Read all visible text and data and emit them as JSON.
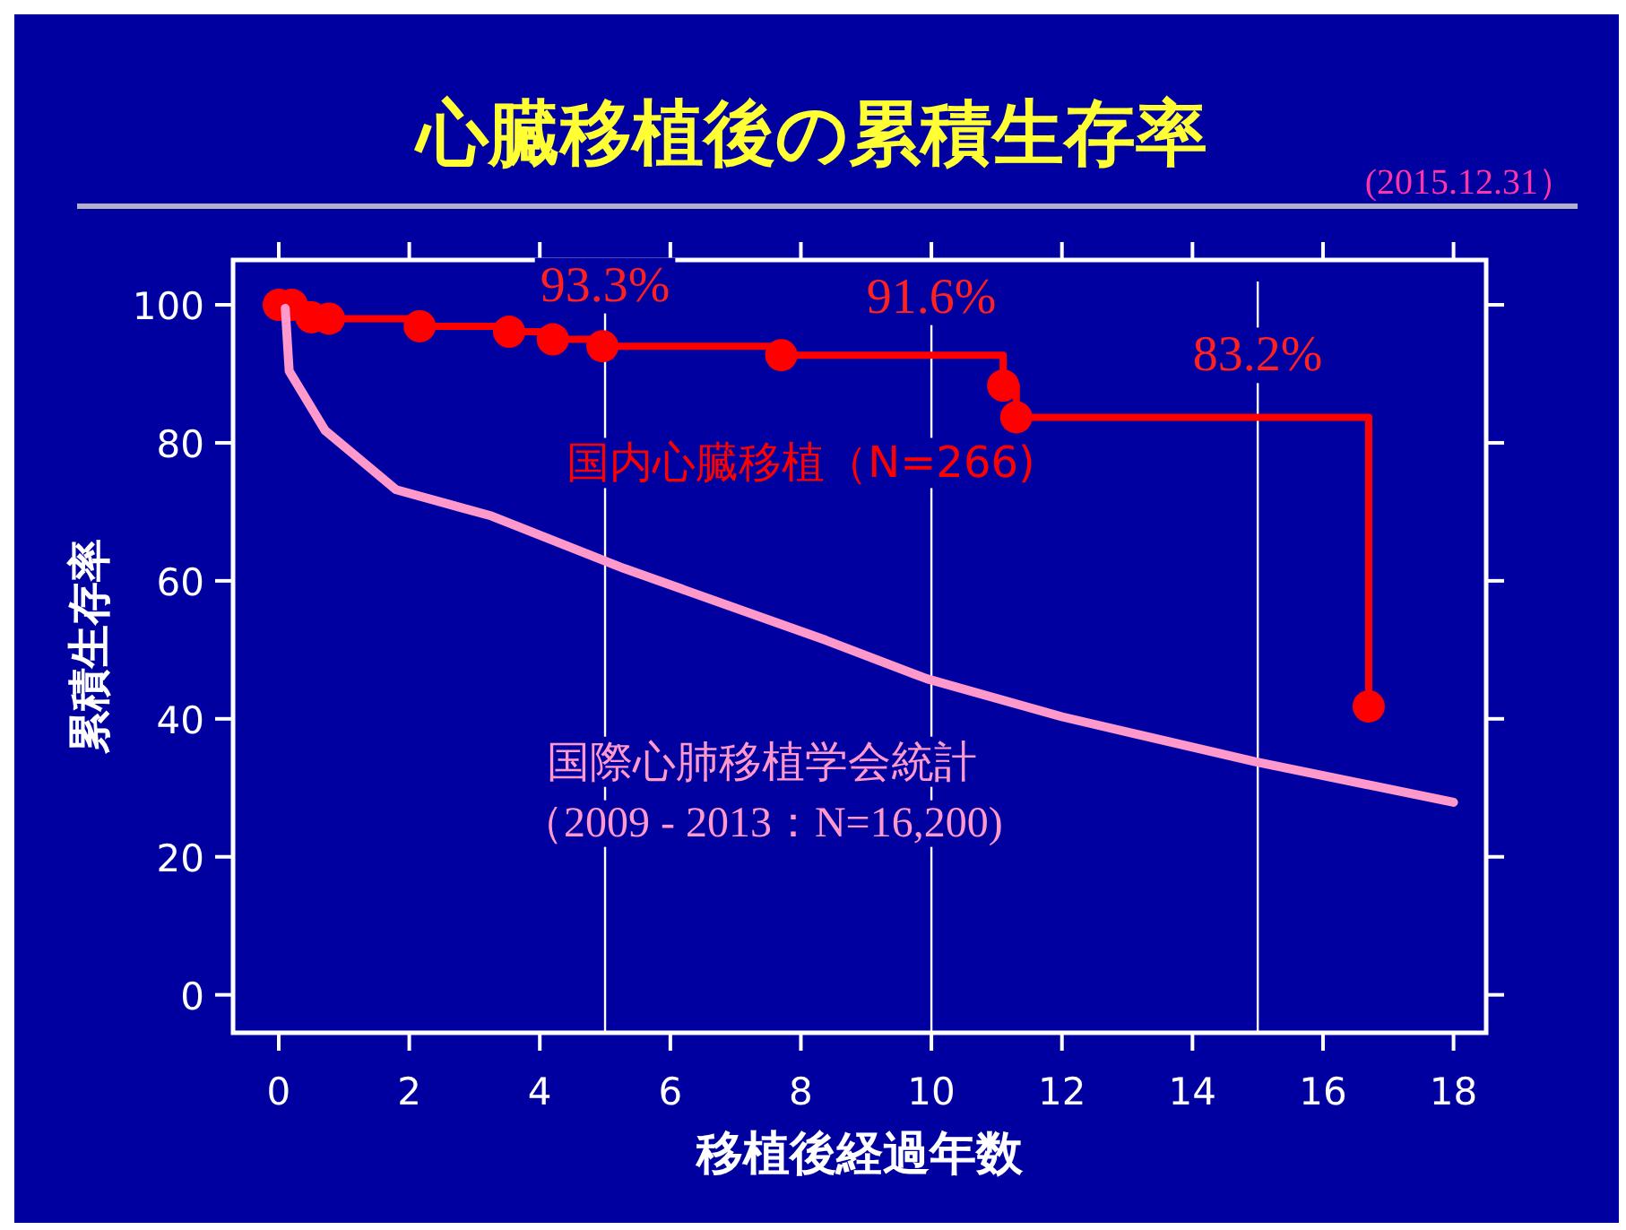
{
  "chart_data": {
    "type": "step",
    "title": "心臓移植後の累積生存率",
    "xlabel": "移植後経過年数",
    "ylabel": "累積生存率",
    "xlim": [
      -0.7,
      18.5
    ],
    "ylim": [
      -5.5,
      106.5
    ],
    "xticks": [
      0,
      2,
      4,
      6,
      8,
      10,
      12,
      14,
      16,
      18
    ],
    "yticks": [
      0,
      20,
      40,
      60,
      80,
      100
    ],
    "marker": "circle",
    "line_style": "solid",
    "grid": false,
    "ref_lines": [
      {
        "axis": "x",
        "value": 5,
        "color": "#ffffff"
      },
      {
        "axis": "x",
        "value": 10,
        "color": "#ffffff"
      },
      {
        "axis": "x",
        "value": 15,
        "color": "#ffffff"
      }
    ],
    "annotations": [
      "(2015.12.31）",
      "（2009 - 2013：N=16,200)",
      {
        "text": "93.3%",
        "x": 5,
        "y": 93.3
      },
      {
        "text": "91.6%",
        "x": 10,
        "y": 91.6
      },
      {
        "text": "83.2%",
        "x": 15,
        "y": 83.2
      }
    ],
    "series": [
      {
        "name": "国内心臓移植（N=266)",
        "color": "#ff0000",
        "x": [
          0,
          0.2,
          0.5,
          0.77,
          2.16,
          3.53,
          4.2,
          4.96,
          7.7,
          11.1,
          11.3,
          16.7
        ],
        "values": [
          100,
          100,
          98.2,
          98,
          96.9,
          96.1,
          95,
          94,
          92.7,
          88.3,
          83.7,
          41.8
        ]
      },
      {
        "name": "国際心肺移植学会統計",
        "type": "line",
        "marker": "none",
        "color": "#ff99cc",
        "x": [
          0.1,
          0.16,
          0.71,
          1.8,
          3.26,
          5.29,
          8.38,
          9.93,
          12,
          14.96,
          18
        ],
        "values": [
          99.5,
          90.4,
          81.8,
          73.2,
          69.4,
          61.8,
          51.4,
          45.8,
          40.3,
          33.8,
          27.9
        ]
      }
    ]
  }
}
